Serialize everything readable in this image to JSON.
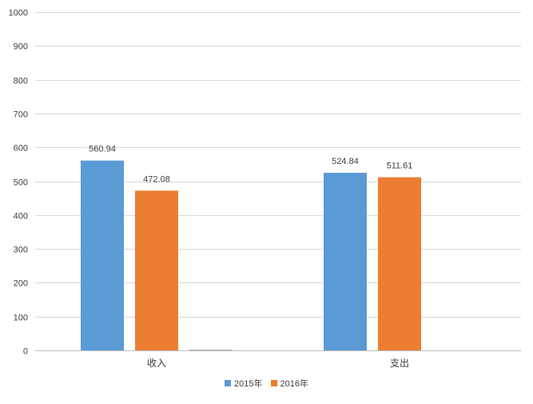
{
  "chart_data": {
    "type": "bar",
    "categories": [
      "收入",
      "支出"
    ],
    "series": [
      {
        "name": "2015年",
        "values": [
          560.94,
          524.84
        ],
        "color": "#5b9bd5"
      },
      {
        "name": "2016年",
        "values": [
          472.08,
          511.61
        ],
        "color": "#ed7d31"
      }
    ],
    "extra_bar": {
      "category_index": 0,
      "value": 2,
      "color": "#a5a5a5"
    },
    "ylim": [
      0,
      1000
    ],
    "yticks": [
      0,
      100,
      200,
      300,
      400,
      500,
      600,
      700,
      800,
      900,
      1000
    ],
    "title": "",
    "xlabel": "",
    "ylabel": "",
    "grid": true,
    "legend_position": "bottom",
    "colors": {
      "grid": "#d9d9d9",
      "text": "#404040",
      "axis": "#bfbfbf"
    }
  }
}
